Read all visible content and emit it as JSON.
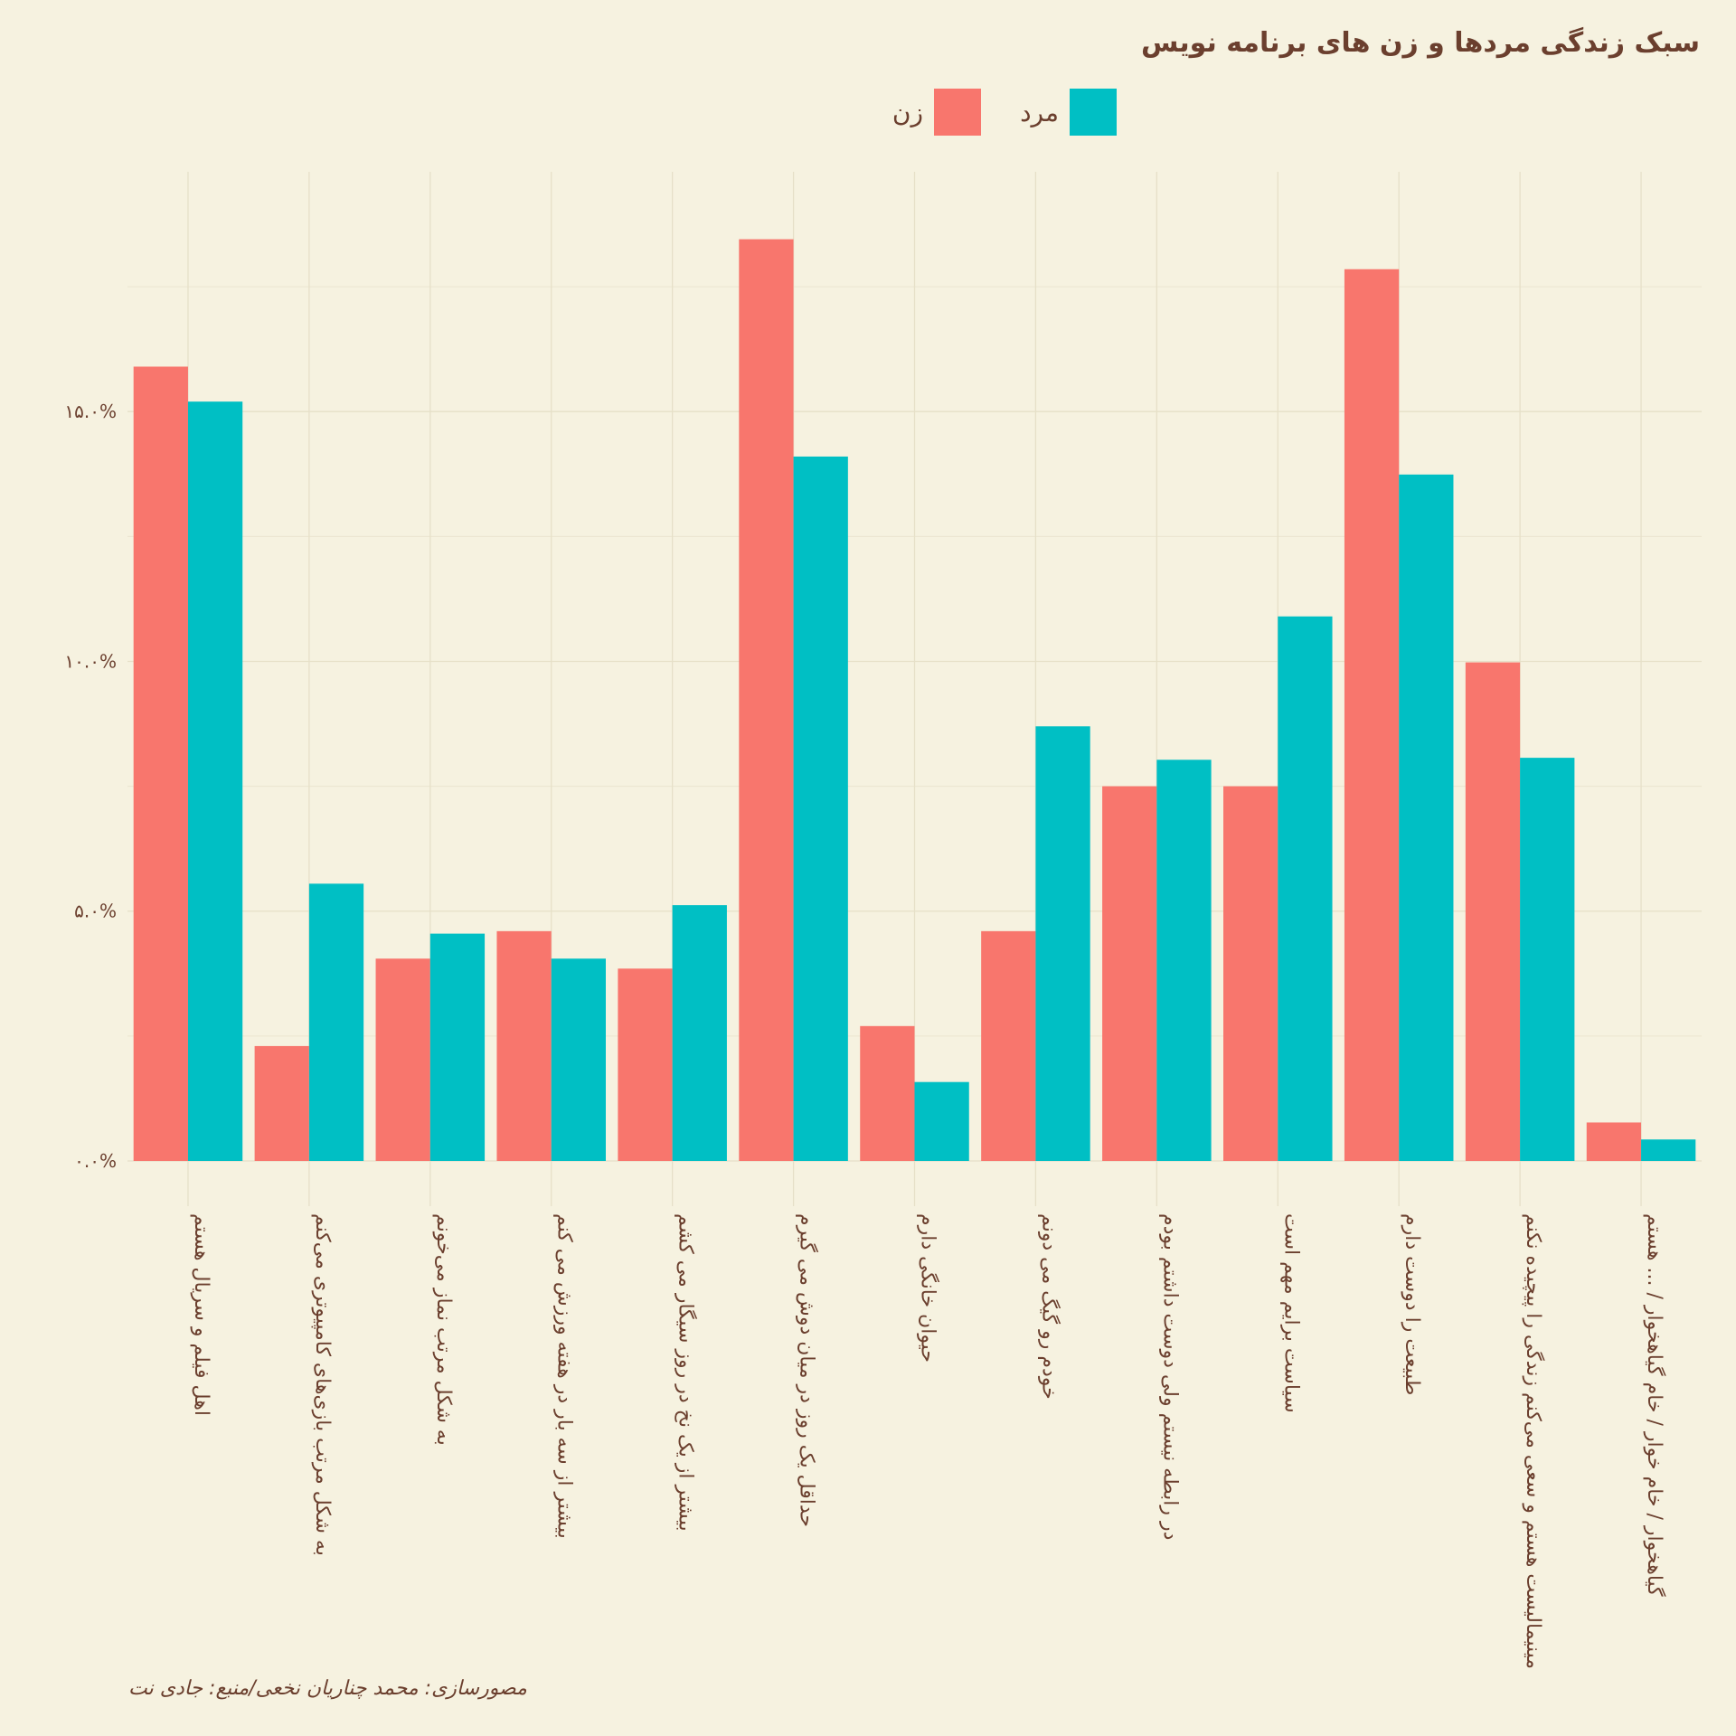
{
  "chart_data": {
    "type": "bar",
    "title": "سبک زندگی مردها و زن های برنامه نویس",
    "caption": "مصورسازی: محمد چناریان نخعی/منبع: جادی نت",
    "legend_position": "top",
    "grid": true,
    "ylim": [
      0,
      0.198
    ],
    "y_ticks": [
      0,
      0.05,
      0.1,
      0.15
    ],
    "y_tick_labels": [
      "۰.۰%",
      "۵.۰%",
      "۱۰.۰%",
      "۱۵.۰%"
    ],
    "categories": [
      "اهل فیلم و سریال هستم",
      "به شکل مرتب بازی‌های کامپیوتری می‌کنم",
      "به شکل مرتب نماز می‌خونم",
      "بیشتر از سه بار در هفته ورزش می کنم",
      "بیشتر از یک نخ در روز سیگار می کشم",
      "حداقل یک روز در میان دوش می گیرم",
      "حیوان خانگی دارم",
      "خودم رو گیگ می دونم",
      "در رابطه نیستم ولی دوست داشتم بودم",
      "سیاست برایم مهم است",
      "طبیعت را دوست دارم",
      "مینیمالیست هستم و سعی می‌کنم زندگی را پیچیده نکنم",
      "گیاهخوار / خام خوار / خام گیاهخوار / ... هستم"
    ],
    "series": [
      {
        "name": "زن",
        "color": "#f8766d",
        "values": [
          0.159,
          0.023,
          0.0405,
          0.046,
          0.0385,
          0.1845,
          0.027,
          0.046,
          0.075,
          0.075,
          0.1785,
          0.0998,
          0.0077
        ]
      },
      {
        "name": "مرد",
        "color": "#00bfc4",
        "values": [
          0.152,
          0.0555,
          0.0455,
          0.0405,
          0.0512,
          0.141,
          0.0158,
          0.087,
          0.0803,
          0.109,
          0.1374,
          0.0807,
          0.0043
        ]
      }
    ]
  }
}
